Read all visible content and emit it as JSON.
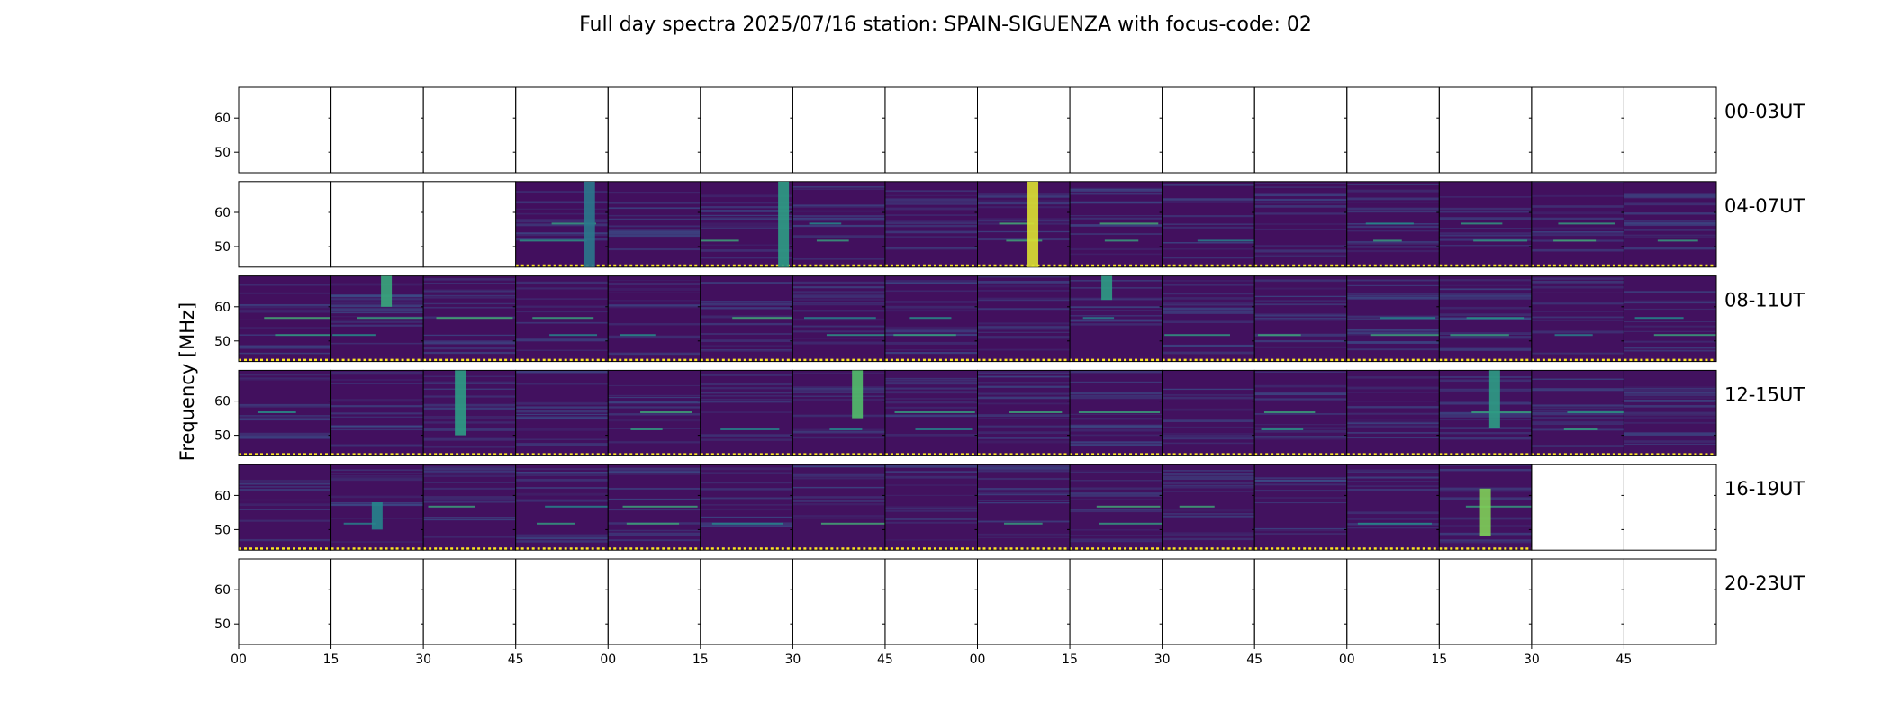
{
  "chart_data": {
    "type": "heatmap",
    "title": "Full day spectra 2025/07/16 station: SPAIN-SIGUENZA with focus-code: 02",
    "ylabel": "Frequency [MHz]",
    "xlabel": "",
    "colormap": "viridis",
    "y_ticks": [
      "60",
      "50"
    ],
    "x_ticks": [
      "00",
      "15",
      "30",
      "45",
      "00",
      "15",
      "30",
      "45",
      "00",
      "15",
      "30",
      "45",
      "00",
      "15",
      "30",
      "45"
    ],
    "row_labels": [
      "00-03UT",
      "04-07UT",
      "08-11UT",
      "12-15UT",
      "16-19UT",
      "20-23UT"
    ],
    "panels_per_row": 16,
    "panel_minutes": 15,
    "data_present": [
      [
        0,
        0,
        0,
        0,
        0,
        0,
        0,
        0,
        0,
        0,
        0,
        0,
        0,
        0,
        0,
        0
      ],
      [
        0,
        0,
        0,
        1,
        1,
        1,
        1,
        1,
        1,
        1,
        1,
        1,
        1,
        1,
        1,
        1
      ],
      [
        1,
        1,
        1,
        1,
        1,
        1,
        1,
        1,
        1,
        1,
        1,
        1,
        1,
        1,
        1,
        1
      ],
      [
        1,
        1,
        1,
        1,
        1,
        1,
        1,
        1,
        1,
        1,
        1,
        1,
        1,
        1,
        1,
        1
      ],
      [
        1,
        1,
        1,
        1,
        1,
        1,
        1,
        1,
        1,
        1,
        1,
        1,
        1,
        1,
        0,
        0
      ],
      [
        0,
        0,
        0,
        0,
        0,
        0,
        0,
        0,
        0,
        0,
        0,
        0,
        0,
        0,
        0,
        0
      ]
    ],
    "bursts": [
      {
        "row": 1,
        "panel": 3,
        "pos": 0.8,
        "freq": [
          44,
          69
        ],
        "intensity": 0.4
      },
      {
        "row": 1,
        "panel": 5,
        "pos": 0.9,
        "freq": [
          44,
          69
        ],
        "intensity": 0.55
      },
      {
        "row": 1,
        "panel": 8,
        "pos": 0.6,
        "freq": [
          44,
          69
        ],
        "intensity": 0.95
      },
      {
        "row": 2,
        "panel": 1,
        "pos": 0.6,
        "freq": [
          60,
          69
        ],
        "intensity": 0.6
      },
      {
        "row": 2,
        "panel": 9,
        "pos": 0.4,
        "freq": [
          62,
          69
        ],
        "intensity": 0.55
      },
      {
        "row": 3,
        "panel": 2,
        "pos": 0.4,
        "freq": [
          50,
          69
        ],
        "intensity": 0.55
      },
      {
        "row": 3,
        "panel": 6,
        "pos": 0.7,
        "freq": [
          55,
          69
        ],
        "intensity": 0.7
      },
      {
        "row": 3,
        "panel": 13,
        "pos": 0.6,
        "freq": [
          52,
          69
        ],
        "intensity": 0.55
      },
      {
        "row": 4,
        "panel": 1,
        "pos": 0.5,
        "freq": [
          50,
          58
        ],
        "intensity": 0.45
      },
      {
        "row": 4,
        "panel": 13,
        "pos": 0.5,
        "freq": [
          48,
          62
        ],
        "intensity": 0.8
      }
    ]
  }
}
